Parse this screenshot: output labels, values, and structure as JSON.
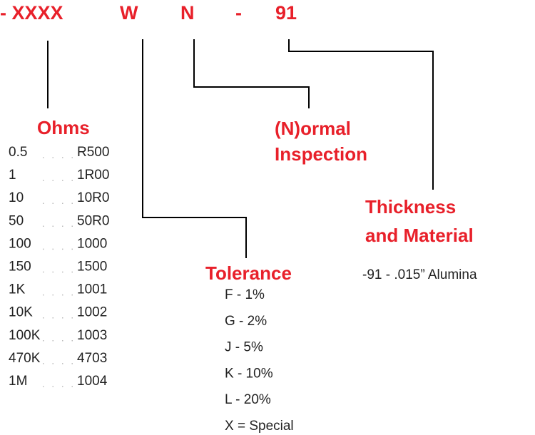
{
  "code": [
    "- XXXX",
    "W",
    "N",
    "-",
    "91"
  ],
  "ohms": {
    "title": "Ohms",
    "rows": [
      [
        "0.5",
        "R500"
      ],
      [
        "1",
        "1R00"
      ],
      [
        "10",
        "10R0"
      ],
      [
        "50",
        "50R0"
      ],
      [
        "100",
        "1000"
      ],
      [
        "150",
        "1500"
      ],
      [
        "1K",
        "1001"
      ],
      [
        "10K",
        "1002"
      ],
      [
        "100K",
        "1003"
      ],
      [
        "470K",
        "4703"
      ],
      [
        "1M",
        "1004"
      ]
    ]
  },
  "inspection": {
    "title": [
      "(N)ormal",
      "Inspection"
    ]
  },
  "thickness": {
    "title": [
      "Thickness",
      "and Material"
    ],
    "items": [
      "-91 - .015” Alumina"
    ]
  },
  "tolerance": {
    "title": "Tolerance",
    "items": [
      "F - 1%",
      "G - 2%",
      "J  - 5%",
      "K - 10%",
      "L - 20%",
      "X = Special"
    ]
  }
}
